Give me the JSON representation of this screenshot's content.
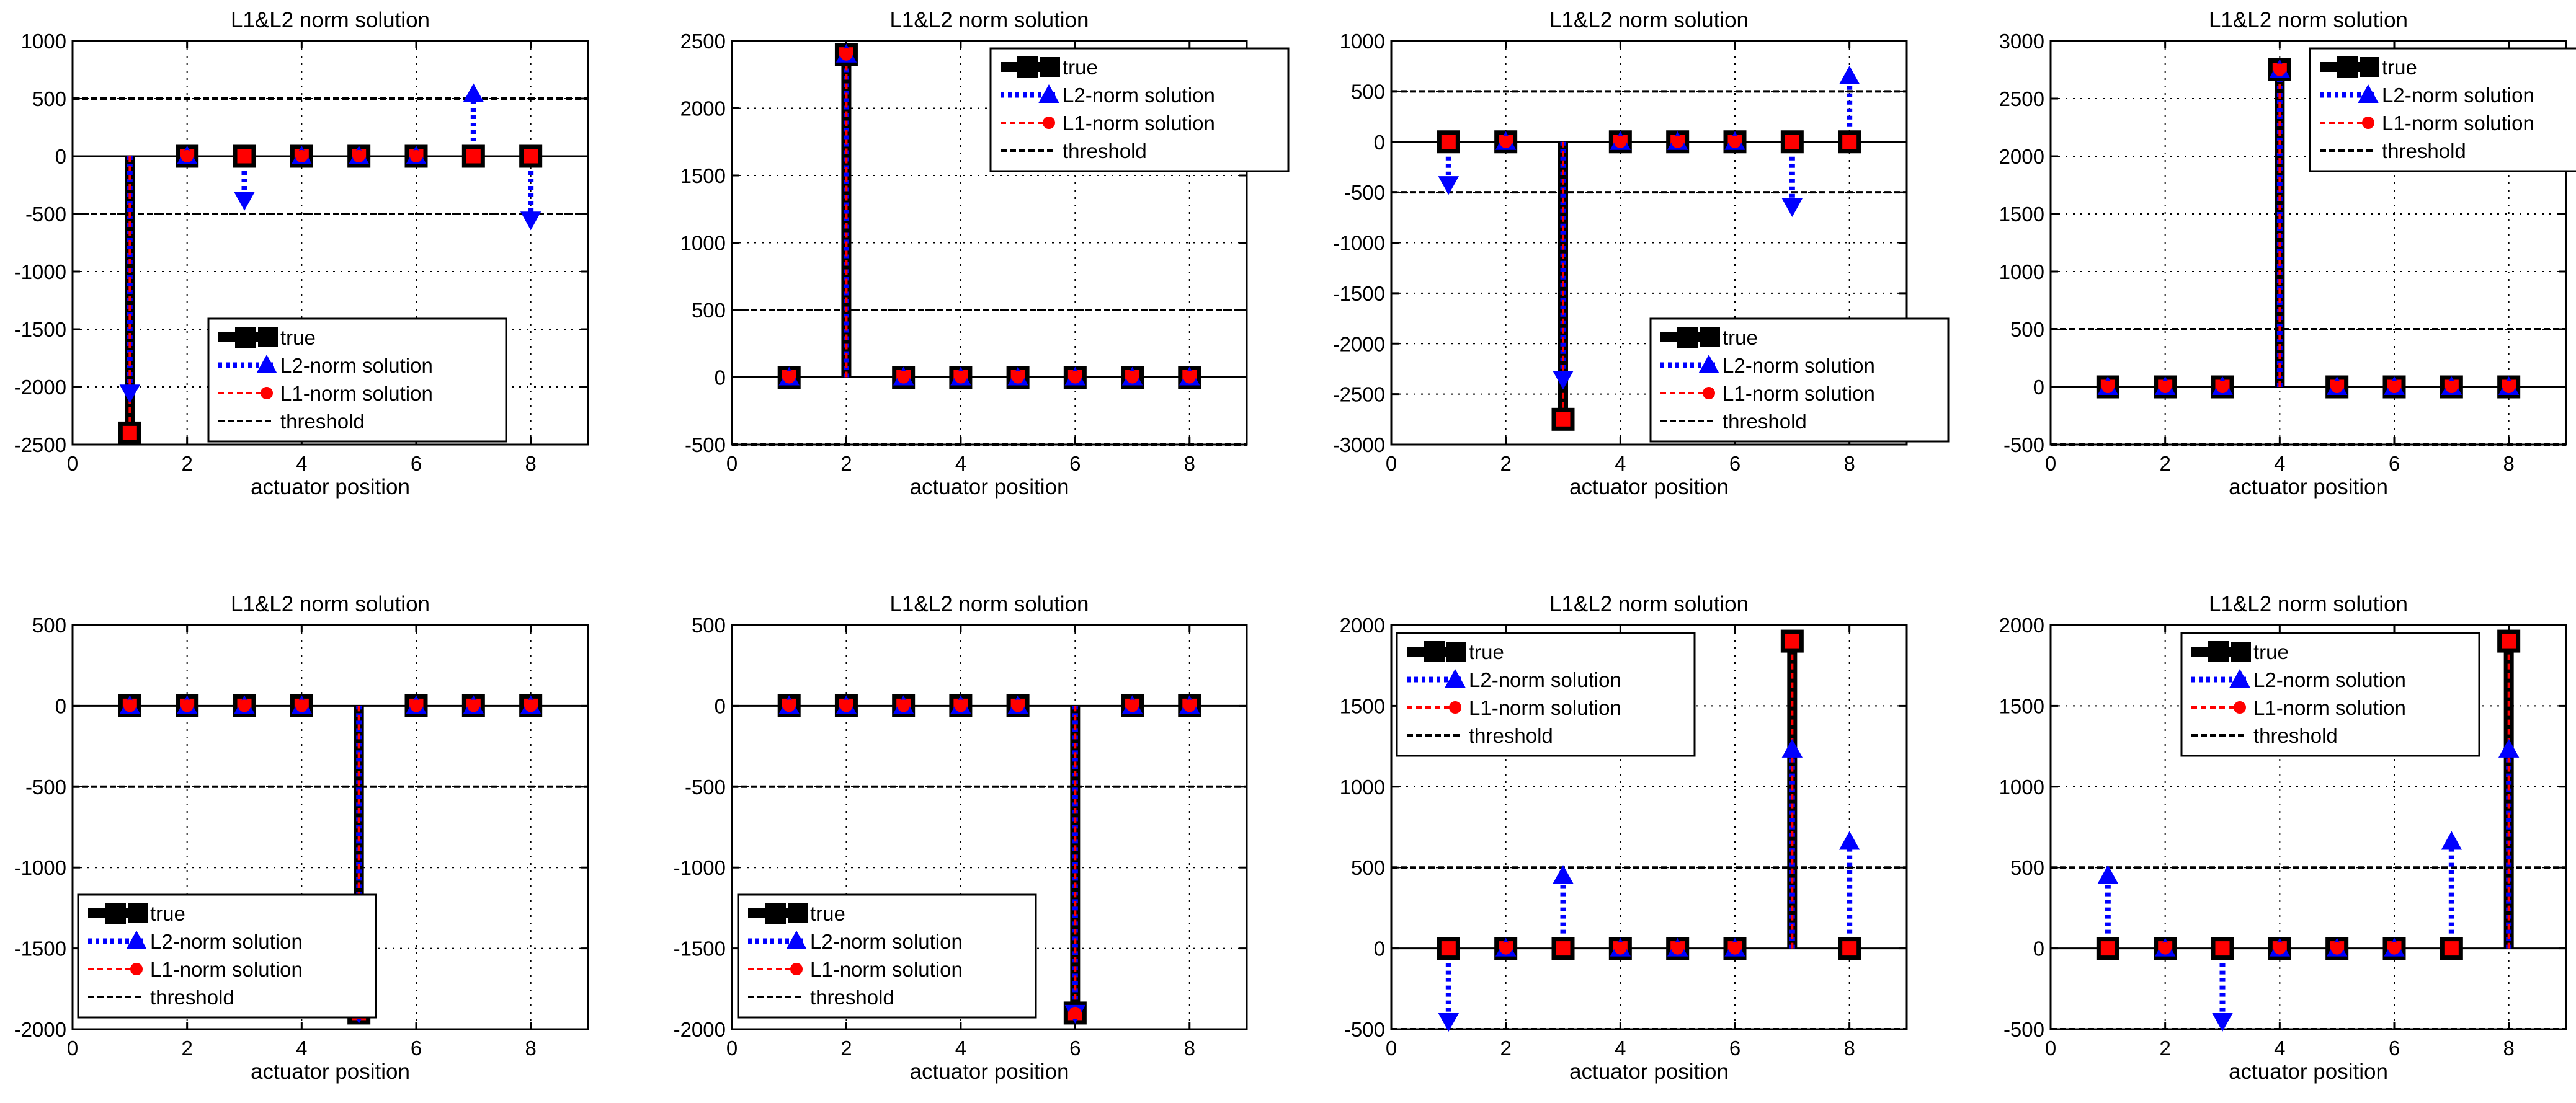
{
  "chart_data": [
    {
      "type": "stem",
      "title": "L1&L2 norm solution",
      "xlabel": "actuator position",
      "ylabel": "",
      "xlim": [
        0,
        9
      ],
      "ylim": [
        -2500,
        1000
      ],
      "xticks": [
        0,
        2,
        4,
        6,
        8
      ],
      "yticks": [
        -2500,
        -2000,
        -1500,
        -1000,
        -500,
        0,
        500,
        1000
      ],
      "ytick_labels": [
        "-2500",
        "-2000",
        "-1500",
        "-1000",
        "-500",
        "0",
        "500",
        "1000"
      ],
      "threshold": [
        500,
        -500
      ],
      "grid": true,
      "legend_position": "lower-center",
      "series": [
        {
          "name": "true",
          "x": [
            1,
            2,
            3,
            4,
            5,
            6,
            7,
            8
          ],
          "values": [
            -2400,
            0,
            0,
            0,
            0,
            0,
            0,
            0
          ]
        },
        {
          "name": "L2-norm solution",
          "x": [
            1,
            2,
            3,
            4,
            5,
            6,
            7,
            8
          ],
          "values": [
            -2050,
            0,
            -380,
            0,
            0,
            0,
            540,
            -550
          ]
        },
        {
          "name": "L1-norm solution",
          "x": [
            1,
            2,
            3,
            4,
            5,
            6,
            7,
            8
          ],
          "values": [
            -2400,
            0,
            0,
            0,
            0,
            0,
            0,
            0
          ]
        }
      ],
      "legend": [
        "true",
        "L2-norm solution",
        "L1-norm solution",
        "threshold"
      ]
    },
    {
      "type": "stem",
      "title": "L1&L2 norm solution",
      "xlabel": "actuator position",
      "ylabel": "",
      "xlim": [
        0,
        9
      ],
      "ylim": [
        -500,
        2500
      ],
      "xticks": [
        0,
        2,
        4,
        6,
        8
      ],
      "yticks": [
        -500,
        0,
        500,
        1000,
        1500,
        2000,
        2500
      ],
      "ytick_labels": [
        "-500",
        "0",
        "500",
        "1000",
        "1500",
        "2000",
        "2500"
      ],
      "threshold": [
        500,
        -500
      ],
      "grid": true,
      "legend_position": "top-right",
      "series": [
        {
          "name": "true",
          "x": [
            1,
            2,
            3,
            4,
            5,
            6,
            7,
            8
          ],
          "values": [
            0,
            2400,
            0,
            0,
            0,
            0,
            0,
            0
          ]
        },
        {
          "name": "L2-norm solution",
          "x": [
            1,
            2,
            3,
            4,
            5,
            6,
            7,
            8
          ],
          "values": [
            0,
            2400,
            0,
            0,
            0,
            0,
            0,
            0
          ]
        },
        {
          "name": "L1-norm solution",
          "x": [
            1,
            2,
            3,
            4,
            5,
            6,
            7,
            8
          ],
          "values": [
            0,
            2400,
            0,
            0,
            0,
            0,
            0,
            0
          ]
        }
      ],
      "legend": [
        "true",
        "L2-norm solution",
        "L1-norm solution",
        "threshold"
      ]
    },
    {
      "type": "stem",
      "title": "L1&L2 norm solution",
      "xlabel": "actuator position",
      "ylabel": "",
      "xlim": [
        0,
        9
      ],
      "ylim": [
        -3000,
        1000
      ],
      "xticks": [
        0,
        2,
        4,
        6,
        8
      ],
      "yticks": [
        -3000,
        -2500,
        -2000,
        -1500,
        -1000,
        -500,
        0,
        500,
        1000
      ],
      "ytick_labels": [
        "-3000",
        "-2500",
        "-2000",
        "-1500",
        "-1000",
        "-500",
        "0",
        "500",
        "1000"
      ],
      "threshold": [
        500,
        -500
      ],
      "grid": true,
      "legend_position": "lower-right",
      "series": [
        {
          "name": "true",
          "x": [
            1,
            2,
            3,
            4,
            5,
            6,
            7,
            8
          ],
          "values": [
            0,
            0,
            -2750,
            0,
            0,
            0,
            0,
            0
          ]
        },
        {
          "name": "L2-norm solution",
          "x": [
            1,
            2,
            3,
            4,
            5,
            6,
            7,
            8
          ],
          "values": [
            -420,
            0,
            -2350,
            0,
            0,
            0,
            -640,
            650
          ]
        },
        {
          "name": "L1-norm solution",
          "x": [
            1,
            2,
            3,
            4,
            5,
            6,
            7,
            8
          ],
          "values": [
            0,
            0,
            -2750,
            0,
            0,
            0,
            0,
            0
          ]
        }
      ],
      "legend": [
        "true",
        "L2-norm solution",
        "L1-norm solution",
        "threshold"
      ]
    },
    {
      "type": "stem",
      "title": "L1&L2 norm solution",
      "xlabel": "actuator position",
      "ylabel": "",
      "xlim": [
        0,
        9
      ],
      "ylim": [
        -500,
        3000
      ],
      "xticks": [
        0,
        2,
        4,
        6,
        8
      ],
      "yticks": [
        -500,
        0,
        500,
        1000,
        1500,
        2000,
        2500,
        3000
      ],
      "ytick_labels": [
        "-500",
        "0",
        "500",
        "1000",
        "1500",
        "2000",
        "2500",
        "3000"
      ],
      "threshold": [
        500,
        -500
      ],
      "grid": true,
      "legend_position": "top-right",
      "series": [
        {
          "name": "true",
          "x": [
            1,
            2,
            3,
            4,
            5,
            6,
            7,
            8
          ],
          "values": [
            0,
            0,
            0,
            2750,
            0,
            0,
            0,
            0
          ]
        },
        {
          "name": "L2-norm solution",
          "x": [
            1,
            2,
            3,
            4,
            5,
            6,
            7,
            8
          ],
          "values": [
            0,
            0,
            0,
            2750,
            0,
            0,
            0,
            0
          ]
        },
        {
          "name": "L1-norm solution",
          "x": [
            1,
            2,
            3,
            4,
            5,
            6,
            7,
            8
          ],
          "values": [
            0,
            0,
            0,
            2750,
            0,
            0,
            0,
            0
          ]
        }
      ],
      "legend": [
        "true",
        "L2-norm solution",
        "L1-norm solution",
        "threshold"
      ]
    },
    {
      "type": "stem",
      "title": "L1&L2 norm solution",
      "xlabel": "actuator position",
      "ylabel": "",
      "xlim": [
        0,
        9
      ],
      "ylim": [
        -2000,
        500
      ],
      "xticks": [
        0,
        2,
        4,
        6,
        8
      ],
      "yticks": [
        -2000,
        -1500,
        -1000,
        -500,
        0,
        500
      ],
      "ytick_labels": [
        "-2000",
        "-1500",
        "-1000",
        "-500",
        "0",
        "500"
      ],
      "threshold": [
        500,
        -500
      ],
      "grid": true,
      "legend_position": "lower-left",
      "series": [
        {
          "name": "true",
          "x": [
            1,
            2,
            3,
            4,
            5,
            6,
            7,
            8
          ],
          "values": [
            0,
            0,
            0,
            0,
            -1900,
            0,
            0,
            0
          ]
        },
        {
          "name": "L2-norm solution",
          "x": [
            1,
            2,
            3,
            4,
            5,
            6,
            7,
            8
          ],
          "values": [
            0,
            0,
            0,
            0,
            -1900,
            0,
            0,
            0
          ]
        },
        {
          "name": "L1-norm solution",
          "x": [
            1,
            2,
            3,
            4,
            5,
            6,
            7,
            8
          ],
          "values": [
            0,
            0,
            0,
            0,
            -1900,
            0,
            0,
            0
          ]
        }
      ],
      "legend": [
        "true",
        "L2-norm solution",
        "L1-norm solution",
        "threshold"
      ]
    },
    {
      "type": "stem",
      "title": "L1&L2 norm solution",
      "xlabel": "actuator position",
      "ylabel": "",
      "xlim": [
        0,
        9
      ],
      "ylim": [
        -2000,
        500
      ],
      "xticks": [
        0,
        2,
        4,
        6,
        8
      ],
      "yticks": [
        -2000,
        -1500,
        -1000,
        -500,
        0,
        500
      ],
      "ytick_labels": [
        "-2000",
        "-1500",
        "-1000",
        "-500",
        "0",
        "500"
      ],
      "threshold": [
        500,
        -500
      ],
      "grid": true,
      "legend_position": "lower-left",
      "series": [
        {
          "name": "true",
          "x": [
            1,
            2,
            3,
            4,
            5,
            6,
            7,
            8
          ],
          "values": [
            0,
            0,
            0,
            0,
            0,
            -1900,
            0,
            0
          ]
        },
        {
          "name": "L2-norm solution",
          "x": [
            1,
            2,
            3,
            4,
            5,
            6,
            7,
            8
          ],
          "values": [
            0,
            0,
            0,
            0,
            0,
            -1900,
            0,
            0
          ]
        },
        {
          "name": "L1-norm solution",
          "x": [
            1,
            2,
            3,
            4,
            5,
            6,
            7,
            8
          ],
          "values": [
            0,
            0,
            0,
            0,
            0,
            -1900,
            0,
            0
          ]
        }
      ],
      "legend": [
        "true",
        "L2-norm solution",
        "L1-norm solution",
        "threshold"
      ]
    },
    {
      "type": "stem",
      "title": "L1&L2 norm solution",
      "xlabel": "actuator position",
      "ylabel": "",
      "xlim": [
        0,
        9
      ],
      "ylim": [
        -500,
        2000
      ],
      "xticks": [
        0,
        2,
        4,
        6,
        8
      ],
      "yticks": [
        -500,
        0,
        500,
        1000,
        1500,
        2000
      ],
      "ytick_labels": [
        "-500",
        "0",
        "500",
        "1000",
        "1500",
        "2000"
      ],
      "threshold": [
        500,
        -500
      ],
      "grid": true,
      "legend_position": "top-left",
      "series": [
        {
          "name": "true",
          "x": [
            1,
            2,
            3,
            4,
            5,
            6,
            7,
            8
          ],
          "values": [
            0,
            0,
            0,
            0,
            0,
            0,
            1900,
            0
          ]
        },
        {
          "name": "L2-norm solution",
          "x": [
            1,
            2,
            3,
            4,
            5,
            6,
            7,
            8
          ],
          "values": [
            -450,
            0,
            450,
            0,
            0,
            0,
            1230,
            660
          ]
        },
        {
          "name": "L1-norm solution",
          "x": [
            1,
            2,
            3,
            4,
            5,
            6,
            7,
            8
          ],
          "values": [
            0,
            0,
            0,
            0,
            0,
            0,
            1900,
            0
          ]
        }
      ],
      "legend": [
        "true",
        "L2-norm solution",
        "L1-norm solution",
        "threshold"
      ]
    },
    {
      "type": "stem",
      "title": "L1&L2 norm solution",
      "xlabel": "actuator position",
      "ylabel": "",
      "xlim": [
        0,
        9
      ],
      "ylim": [
        -500,
        2000
      ],
      "xticks": [
        0,
        2,
        4,
        6,
        8
      ],
      "yticks": [
        -500,
        0,
        500,
        1000,
        1500,
        2000
      ],
      "ytick_labels": [
        "-500",
        "0",
        "500",
        "1000",
        "1500",
        "2000"
      ],
      "threshold": [
        500,
        -500
      ],
      "grid": true,
      "legend_position": "top-center",
      "series": [
        {
          "name": "true",
          "x": [
            1,
            2,
            3,
            4,
            5,
            6,
            7,
            8
          ],
          "values": [
            0,
            0,
            0,
            0,
            0,
            0,
            0,
            1900
          ]
        },
        {
          "name": "L2-norm solution",
          "x": [
            1,
            2,
            3,
            4,
            5,
            6,
            7,
            8
          ],
          "values": [
            450,
            0,
            -450,
            0,
            0,
            0,
            660,
            1230
          ]
        },
        {
          "name": "L1-norm solution",
          "x": [
            1,
            2,
            3,
            4,
            5,
            6,
            7,
            8
          ],
          "values": [
            0,
            0,
            0,
            0,
            0,
            0,
            0,
            1900
          ]
        }
      ],
      "legend": [
        "true",
        "L2-norm solution",
        "L1-norm solution",
        "threshold"
      ]
    }
  ],
  "colors": {
    "true": "#000000",
    "l2": "#0000ff",
    "l1": "#ff0000",
    "threshold": "#000000",
    "grid": "#000000"
  }
}
